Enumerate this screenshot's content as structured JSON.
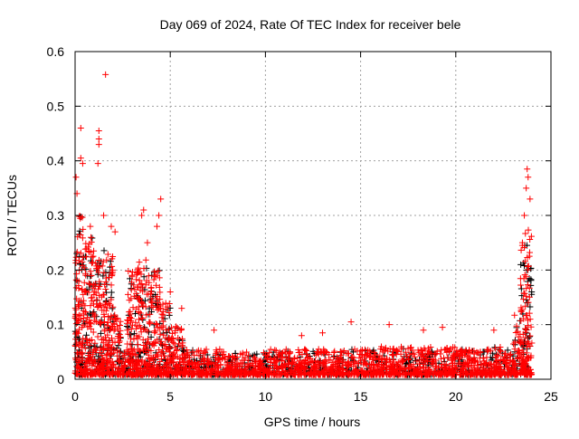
{
  "chart_data": {
    "type": "scatter",
    "title": "Day 069 of 2024, Rate Of TEC Index for receiver bele",
    "xlabel": "GPS time / hours",
    "ylabel": "ROTI / TECUs",
    "xlim": [
      0,
      25
    ],
    "ylim": [
      0,
      0.6
    ],
    "xticks": [
      "0",
      "5",
      "10",
      "15",
      "20",
      "25"
    ],
    "yticks": [
      "0",
      "0.1",
      "0.2",
      "0.3",
      "0.4",
      "0.5",
      "0.6"
    ],
    "grid": true,
    "legend": "none",
    "marker": "plus",
    "series_colors": {
      "background": "#000000",
      "main": "#ff0000"
    },
    "density_envelope": [
      [
        0.0,
        0.5,
        0.3
      ],
      [
        0.5,
        1.0,
        0.26
      ],
      [
        1.0,
        1.5,
        0.22
      ],
      [
        1.5,
        2.0,
        0.24
      ],
      [
        2.0,
        2.4,
        0.12
      ],
      [
        2.4,
        2.7,
        0.05
      ],
      [
        2.7,
        3.2,
        0.2
      ],
      [
        3.2,
        3.8,
        0.22
      ],
      [
        3.8,
        4.5,
        0.2
      ],
      [
        4.5,
        5.0,
        0.14
      ],
      [
        5.0,
        5.7,
        0.1
      ],
      [
        5.7,
        6.5,
        0.06
      ],
      [
        6.5,
        8.0,
        0.055
      ],
      [
        8.0,
        10.0,
        0.05
      ],
      [
        10.0,
        12.0,
        0.055
      ],
      [
        12.0,
        14.0,
        0.055
      ],
      [
        14.0,
        16.0,
        0.055
      ],
      [
        16.0,
        18.0,
        0.06
      ],
      [
        18.0,
        20.0,
        0.06
      ],
      [
        20.0,
        22.0,
        0.055
      ],
      [
        22.0,
        23.0,
        0.06
      ],
      [
        23.0,
        23.4,
        0.12
      ],
      [
        23.4,
        24.0,
        0.28
      ]
    ],
    "outliers": [
      [
        1.6,
        0.558
      ],
      [
        0.3,
        0.46
      ],
      [
        1.25,
        0.455
      ],
      [
        1.25,
        0.44
      ],
      [
        1.25,
        0.43
      ],
      [
        1.2,
        0.395
      ],
      [
        0.3,
        0.405
      ],
      [
        0.4,
        0.395
      ],
      [
        0.05,
        0.37
      ],
      [
        0.1,
        0.34
      ],
      [
        3.6,
        0.31
      ],
      [
        3.5,
        0.3
      ],
      [
        4.5,
        0.33
      ],
      [
        4.4,
        0.3
      ],
      [
        1.5,
        0.3
      ],
      [
        23.75,
        0.385
      ],
      [
        23.8,
        0.37
      ],
      [
        23.7,
        0.35
      ],
      [
        23.9,
        0.33
      ],
      [
        23.6,
        0.3
      ],
      [
        14.5,
        0.105
      ],
      [
        16.5,
        0.1
      ],
      [
        19.3,
        0.095
      ],
      [
        7.3,
        0.09
      ],
      [
        11.9,
        0.08
      ],
      [
        22.0,
        0.09
      ],
      [
        18.3,
        0.09
      ],
      [
        13.0,
        0.085
      ],
      [
        5.6,
        0.13
      ],
      [
        5.0,
        0.16
      ],
      [
        4.3,
        0.28
      ],
      [
        3.8,
        0.25
      ],
      [
        1.9,
        0.28
      ],
      [
        2.1,
        0.27
      ],
      [
        0.8,
        0.28
      ],
      [
        23.5,
        0.25
      ]
    ]
  }
}
